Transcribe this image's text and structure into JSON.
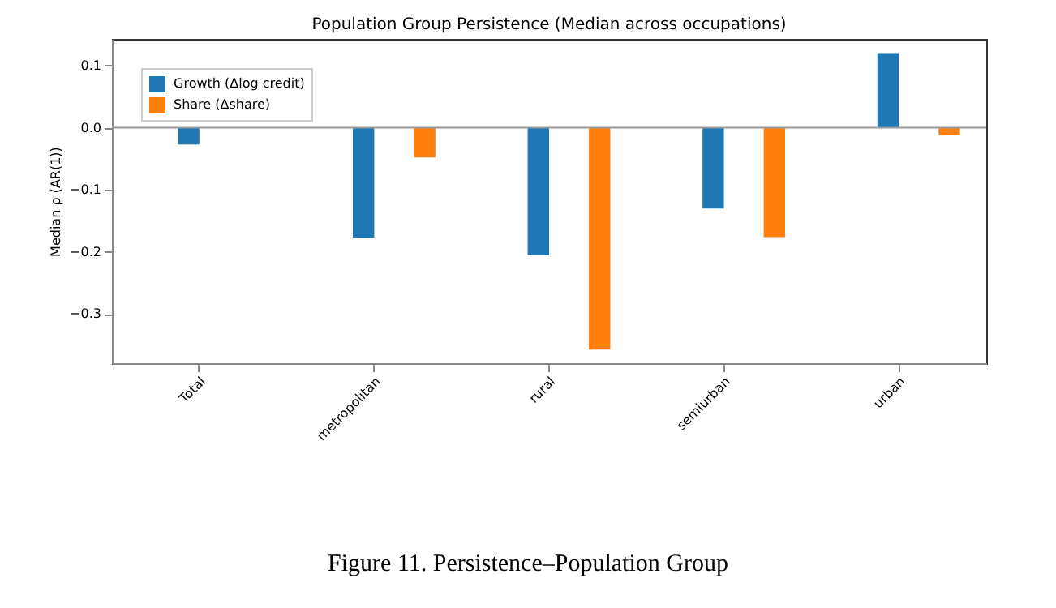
{
  "chart_data": {
    "type": "bar",
    "title": "Population Group Persistence (Median across occupations)",
    "ylabel": "Median ρ (AR(1))",
    "categories": [
      "Total",
      "metropolitan",
      "rural",
      "semiurban",
      "urban"
    ],
    "series": [
      {
        "name": "Growth (Δlog credit)",
        "color": "#1f77b4",
        "values": [
          -0.027,
          -0.177,
          -0.205,
          -0.13,
          0.12
        ]
      },
      {
        "name": "Share (Δshare)",
        "color": "#ff7f0e",
        "values": [
          null,
          -0.048,
          -0.357,
          -0.176,
          -0.012
        ]
      }
    ],
    "ylim": [
      -0.379,
      0.143
    ],
    "yticks": [
      {
        "value": -0.3,
        "label": "−0.3"
      },
      {
        "value": -0.2,
        "label": "−0.2"
      },
      {
        "value": -0.1,
        "label": "−0.1"
      },
      {
        "value": 0,
        "label": "0.0"
      },
      {
        "value": 0.1,
        "label": "0.1"
      }
    ],
    "ref_lines": [
      {
        "axis": "y",
        "value": 0,
        "color": "#999999"
      }
    ],
    "legend": "top left",
    "grid": false,
    "annotations": [
      "Figure 11. Persistence–Population Group"
    ]
  }
}
